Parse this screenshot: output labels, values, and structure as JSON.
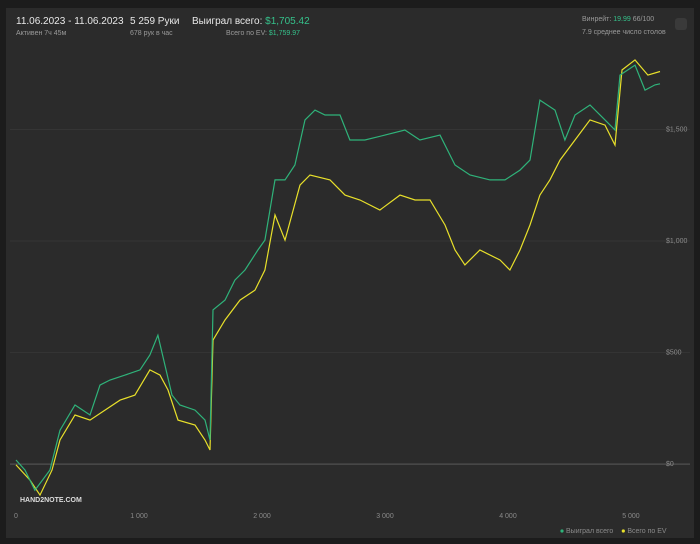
{
  "header": {
    "date_range": "11.06.2023 - 11.06.2023",
    "active": "Активен 7ч 45м",
    "hands": "5 259 Руки",
    "hands_per_hour": "678 рук в час",
    "won_label": "Выиграл всего:",
    "won_value": "$1,705.42",
    "ev_label": "Всего по EV:",
    "ev_value": "$1,759.97",
    "winrate_label": "Винрейт:",
    "winrate_value": "19.99",
    "winrate_unit": "66/100",
    "tables": "7.9 среднее число столов"
  },
  "chart_data": {
    "type": "line",
    "watermark": "HAND2NOTE.COM",
    "xlim": [
      0,
      5480
    ],
    "ylim": [
      -206,
      1879
    ],
    "xticks": [
      0,
      {
        "value": 1000,
        "label": "1 000"
      },
      {
        "value": 2000,
        "label": "2 000"
      },
      {
        "value": 3000,
        "label": "3 000"
      },
      {
        "value": 4000,
        "label": "4 000"
      },
      {
        "value": 5000,
        "label": "5 000"
      }
    ],
    "yticks": [
      {
        "value": 0,
        "label": "$0"
      },
      {
        "value": 500,
        "label": "$500"
      },
      {
        "value": 1000,
        "label": "$1,000"
      },
      {
        "value": 1500,
        "label": "$1,500"
      }
    ],
    "grid": true,
    "legend": "bottom-right",
    "series": [
      {
        "name": "Выиграл всего",
        "color": "#2fb37a",
        "x": [
          0,
          73,
          154,
          276,
          358,
          480,
          602,
          683,
          764,
          886,
          1008,
          1089,
          1154,
          1211,
          1268,
          1333,
          1455,
          1537,
          1577,
          1602,
          1699,
          1780,
          1862,
          1967,
          2024,
          2106,
          2187,
          2268,
          2350,
          2431,
          2512,
          2634,
          2715,
          2837,
          2999,
          3162,
          3284,
          3447,
          3569,
          3691,
          3854,
          3976,
          4098,
          4179,
          4260,
          4382,
          4463,
          4545,
          4667,
          4789,
          4870,
          4911,
          5033,
          5114,
          5195,
          5236
        ],
        "values": [
          18,
          -27,
          -117,
          -27,
          152,
          265,
          220,
          354,
          377,
          399,
          422,
          489,
          578,
          444,
          309,
          265,
          242,
          197,
          108,
          691,
          735,
          825,
          870,
          960,
          1004,
          1274,
          1274,
          1341,
          1543,
          1587,
          1565,
          1565,
          1453,
          1453,
          1475,
          1498,
          1453,
          1475,
          1341,
          1296,
          1274,
          1274,
          1318,
          1363,
          1632,
          1587,
          1453,
          1565,
          1610,
          1543,
          1498,
          1744,
          1789,
          1677,
          1700,
          1705
        ]
      },
      {
        "name": "Всего по EV",
        "color": "#e8e02a",
        "x": [
          0,
          114,
          195,
          293,
          358,
          480,
          602,
          724,
          846,
          967,
          1089,
          1171,
          1236,
          1317,
          1455,
          1537,
          1577,
          1602,
          1699,
          1821,
          1943,
          2024,
          2106,
          2187,
          2309,
          2390,
          2553,
          2675,
          2797,
          2959,
          3122,
          3244,
          3366,
          3488,
          3569,
          3650,
          3772,
          3935,
          4016,
          4098,
          4179,
          4260,
          4341,
          4423,
          4545,
          4667,
          4789,
          4870,
          4927,
          5033,
          5138,
          5236
        ],
        "values": [
          -4,
          -72,
          -139,
          -27,
          108,
          220,
          197,
          242,
          287,
          309,
          422,
          399,
          332,
          197,
          175,
          108,
          63,
          556,
          646,
          735,
          780,
          870,
          1117,
          1004,
          1251,
          1296,
          1274,
          1206,
          1184,
          1139,
          1206,
          1184,
          1184,
          1072,
          960,
          893,
          960,
          915,
          870,
          960,
          1072,
          1206,
          1274,
          1363,
          1453,
          1543,
          1520,
          1430,
          1767,
          1812,
          1744,
          1760
        ]
      }
    ]
  }
}
